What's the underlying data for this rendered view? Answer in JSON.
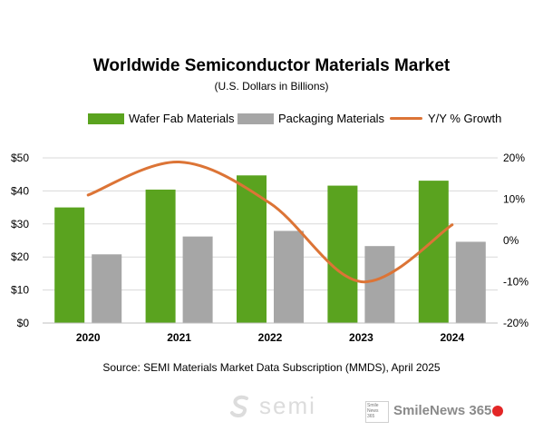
{
  "chart_data": {
    "type": "bar",
    "title": "Worldwide Semiconductor Materials Market",
    "subtitle": "(U.S. Dollars in Billions)",
    "categories": [
      "2020",
      "2021",
      "2022",
      "2023",
      "2024"
    ],
    "series": [
      {
        "name": "Wafer Fab Materials",
        "type": "bar",
        "axis": "left",
        "color": "#5aa31f",
        "values": [
          35.0,
          40.4,
          44.7,
          41.6,
          43.1
        ]
      },
      {
        "name": "Packaging  Materials",
        "type": "bar",
        "axis": "left",
        "color": "#a6a6a6",
        "values": [
          20.8,
          26.2,
          27.9,
          23.3,
          24.6
        ]
      },
      {
        "name": "Y/Y % Growth",
        "type": "line",
        "axis": "right",
        "color": "#dc7436",
        "values": [
          11.0,
          19.0,
          9.0,
          -10.0,
          3.8
        ]
      }
    ],
    "y_left": {
      "min": 0,
      "max": 50,
      "ticks": [
        "$0",
        "$10",
        "$20",
        "$30",
        "$40",
        "$50"
      ]
    },
    "y_right": {
      "min": -20,
      "max": 20,
      "ticks": [
        "-20%",
        "-10%",
        "0%",
        "10%",
        "20%"
      ]
    },
    "legend_position": "top",
    "gridlines": true
  },
  "source": "Source:  SEMI Materials Market Data Subscription (MMDS), April 2025",
  "watermark": {
    "semi": "semi",
    "brand": "SmileNews 365",
    "badge": [
      "Smile",
      "News",
      "365"
    ]
  }
}
